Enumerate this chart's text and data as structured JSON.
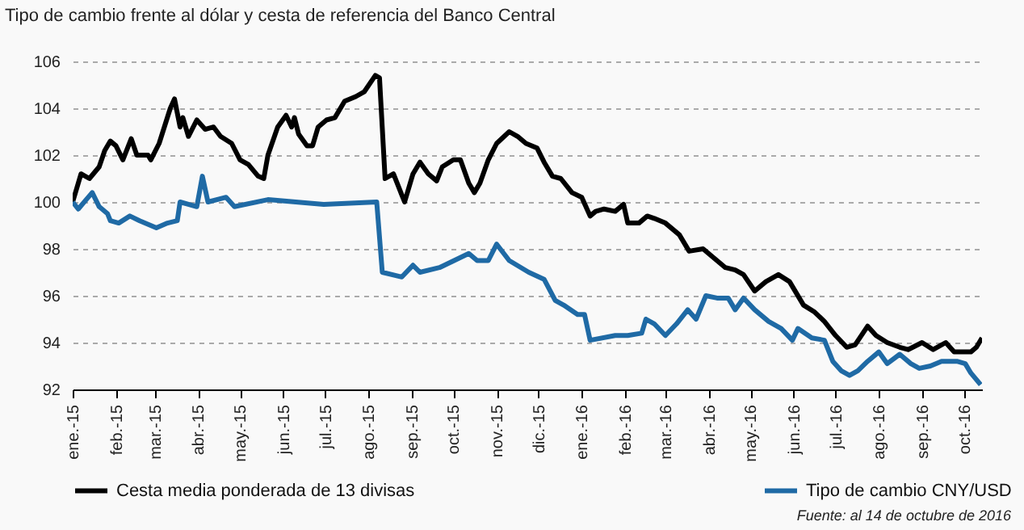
{
  "chart_data": {
    "type": "line",
    "title": "Tipo de cambio frente al dólar y cesta de referencia del Banco Central",
    "series": [
      {
        "name": "Cesta media ponderada de 13 divisas",
        "color": "#000000",
        "x": [
          "2015-01-01",
          "2015-01-07",
          "2015-01-13",
          "2015-01-20",
          "2015-01-24",
          "2015-01-28",
          "2015-02-01",
          "2015-02-06",
          "2015-02-12",
          "2015-02-16",
          "2015-02-24",
          "2015-02-26",
          "2015-03-04",
          "2015-03-12",
          "2015-03-15",
          "2015-03-19",
          "2015-03-21",
          "2015-03-25",
          "2015-03-31",
          "2015-04-06",
          "2015-04-12",
          "2015-04-17",
          "2015-04-25",
          "2015-05-01",
          "2015-05-07",
          "2015-05-14",
          "2015-05-18",
          "2015-05-21",
          "2015-05-28",
          "2015-06-03",
          "2015-06-07",
          "2015-06-09",
          "2015-06-12",
          "2015-06-18",
          "2015-06-22",
          "2015-06-26",
          "2015-07-02",
          "2015-07-08",
          "2015-07-15",
          "2015-07-23",
          "2015-07-29",
          "2015-08-06",
          "2015-08-09",
          "2015-08-13",
          "2015-08-19",
          "2015-08-25",
          "2015-08-27",
          "2015-09-02",
          "2015-09-07",
          "2015-09-13",
          "2015-09-19",
          "2015-09-23",
          "2015-10-01",
          "2015-10-06",
          "2015-10-12",
          "2015-10-16",
          "2015-10-20",
          "2015-10-26",
          "2015-11-01",
          "2015-11-10",
          "2015-11-16",
          "2015-11-22",
          "2015-11-30",
          "2015-12-05",
          "2015-12-11",
          "2015-12-17",
          "2015-12-25",
          "2016-01-01",
          "2016-01-07",
          "2016-01-11",
          "2016-01-17",
          "2016-01-25",
          "2016-01-31",
          "2016-02-03",
          "2016-02-11",
          "2016-02-17",
          "2016-02-22",
          "2016-03-01",
          "2016-03-11",
          "2016-03-18",
          "2016-03-28",
          "2016-04-03",
          "2016-04-13",
          "2016-04-20",
          "2016-04-26",
          "2016-05-04",
          "2016-05-12",
          "2016-05-21",
          "2016-05-29",
          "2016-06-08",
          "2016-06-16",
          "2016-06-23",
          "2016-07-01",
          "2016-07-09",
          "2016-07-15",
          "2016-07-24",
          "2016-07-30",
          "2016-08-07",
          "2016-08-16",
          "2016-08-22",
          "2016-09-01",
          "2016-09-09",
          "2016-09-18",
          "2016-09-24",
          "2016-10-06",
          "2016-10-10",
          "2016-10-14"
        ],
        "values": [
          100.0,
          101.2,
          101.0,
          101.5,
          102.2,
          102.6,
          102.4,
          101.8,
          102.7,
          102.0,
          102.0,
          101.8,
          102.5,
          104.0,
          104.4,
          103.2,
          103.6,
          102.8,
          103.5,
          103.1,
          103.2,
          102.8,
          102.5,
          101.8,
          101.6,
          101.1,
          101.0,
          102.0,
          103.2,
          103.7,
          103.2,
          103.6,
          102.9,
          102.4,
          102.4,
          103.2,
          103.5,
          103.6,
          104.3,
          104.5,
          104.7,
          105.4,
          105.3,
          101.0,
          101.2,
          100.3,
          100.0,
          101.2,
          101.7,
          101.2,
          100.9,
          101.5,
          101.8,
          101.8,
          100.8,
          100.4,
          100.8,
          101.8,
          102.5,
          103.0,
          102.8,
          102.5,
          102.3,
          101.7,
          101.1,
          101.0,
          100.4,
          100.2,
          99.4,
          99.6,
          99.7,
          99.6,
          99.9,
          99.1,
          99.1,
          99.4,
          99.3,
          99.1,
          98.6,
          97.9,
          98.0,
          97.7,
          97.2,
          97.1,
          96.9,
          96.2,
          96.6,
          96.9,
          96.6,
          95.6,
          95.3,
          94.9,
          94.3,
          93.8,
          93.9,
          94.7,
          94.3,
          94.0,
          93.8,
          93.7,
          94.0,
          93.7,
          94.0,
          93.6,
          93.6,
          93.8,
          94.2
        ]
      },
      {
        "name": "Tipo de cambio CNY/USD",
        "color": "#1f6aa5",
        "x": [
          "2015-01-01",
          "2015-01-05",
          "2015-01-15",
          "2015-01-20",
          "2015-01-26",
          "2015-01-28",
          "2015-02-03",
          "2015-02-11",
          "2015-02-18",
          "2015-03-02",
          "2015-03-10",
          "2015-03-17",
          "2015-03-19",
          "2015-03-31",
          "2015-04-04",
          "2015-04-08",
          "2015-04-21",
          "2015-04-27",
          "2015-05-21",
          "2015-06-30",
          "2015-08-07",
          "2015-08-11",
          "2015-08-25",
          "2015-09-02",
          "2015-09-07",
          "2015-09-21",
          "2015-10-12",
          "2015-10-18",
          "2015-10-26",
          "2015-11-01",
          "2015-11-10",
          "2015-11-24",
          "2015-12-05",
          "2015-12-13",
          "2015-12-19",
          "2015-12-29",
          "2016-01-03",
          "2016-01-07",
          "2016-01-25",
          "2016-02-03",
          "2016-02-13",
          "2016-02-16",
          "2016-02-22",
          "2016-03-01",
          "2016-03-09",
          "2016-03-17",
          "2016-03-23",
          "2016-03-30",
          "2016-04-07",
          "2016-04-15",
          "2016-04-20",
          "2016-04-26",
          "2016-05-04",
          "2016-05-14",
          "2016-05-23",
          "2016-05-31",
          "2016-06-04",
          "2016-06-14",
          "2016-06-23",
          "2016-06-29",
          "2016-07-05",
          "2016-07-11",
          "2016-07-17",
          "2016-07-24",
          "2016-08-01",
          "2016-08-07",
          "2016-08-16",
          "2016-08-24",
          "2016-08-30",
          "2016-09-07",
          "2016-09-15",
          "2016-09-26",
          "2016-10-02",
          "2016-10-06",
          "2016-10-13"
        ],
        "values": [
          100.0,
          99.7,
          100.4,
          99.8,
          99.5,
          99.2,
          99.1,
          99.4,
          99.2,
          98.9,
          99.1,
          99.2,
          100.0,
          99.8,
          101.1,
          100.0,
          100.2,
          99.8,
          100.1,
          99.9,
          100.0,
          97.0,
          96.8,
          97.3,
          97.0,
          97.2,
          97.8,
          97.5,
          97.5,
          98.2,
          97.5,
          97.0,
          96.7,
          95.8,
          95.6,
          95.2,
          95.2,
          94.1,
          94.3,
          94.3,
          94.4,
          95.0,
          94.8,
          94.3,
          94.8,
          95.4,
          95.0,
          96.0,
          95.9,
          95.9,
          95.4,
          95.9,
          95.4,
          94.9,
          94.6,
          94.1,
          94.6,
          94.2,
          94.1,
          93.2,
          92.8,
          92.6,
          92.8,
          93.2,
          93.6,
          93.1,
          93.5,
          93.1,
          92.9,
          93.0,
          93.2,
          93.2,
          93.1,
          92.7,
          92.2
        ]
      }
    ],
    "xlim": [
      "2015-01-01",
      "2016-10-14"
    ],
    "xticks": [
      {
        "value": "2015-01-01",
        "label": "ene.-15"
      },
      {
        "value": "2015-02-01",
        "label": "feb.-15"
      },
      {
        "value": "2015-03-01",
        "label": "mar.-15"
      },
      {
        "value": "2015-04-01",
        "label": "abr.-15"
      },
      {
        "value": "2015-05-01",
        "label": "may.-15"
      },
      {
        "value": "2015-06-01",
        "label": "jun.-15"
      },
      {
        "value": "2015-07-01",
        "label": "jul.-15"
      },
      {
        "value": "2015-08-01",
        "label": "ago.-15"
      },
      {
        "value": "2015-09-01",
        "label": "sep.-15"
      },
      {
        "value": "2015-10-01",
        "label": "oct.-15"
      },
      {
        "value": "2015-11-01",
        "label": "nov.-15"
      },
      {
        "value": "2015-12-01",
        "label": "dic.-15"
      },
      {
        "value": "2016-01-01",
        "label": "ene.-16"
      },
      {
        "value": "2016-02-01",
        "label": "feb.-16"
      },
      {
        "value": "2016-03-01",
        "label": "mar.-16"
      },
      {
        "value": "2016-04-01",
        "label": "abr.-16"
      },
      {
        "value": "2016-05-01",
        "label": "may.-16"
      },
      {
        "value": "2016-06-01",
        "label": "jun.-16"
      },
      {
        "value": "2016-07-01",
        "label": "jul.-16"
      },
      {
        "value": "2016-08-01",
        "label": "ago.-16"
      },
      {
        "value": "2016-09-01",
        "label": "sep.-16"
      },
      {
        "value": "2016-10-01",
        "label": "oct.-16"
      }
    ],
    "ylim": [
      92,
      106
    ],
    "yticks": [
      92,
      94,
      96,
      98,
      100,
      102,
      104,
      106
    ],
    "grid": "y",
    "legend": "bottom",
    "annotations": [
      "Fuente: al 14 de octubre de 2016"
    ]
  }
}
